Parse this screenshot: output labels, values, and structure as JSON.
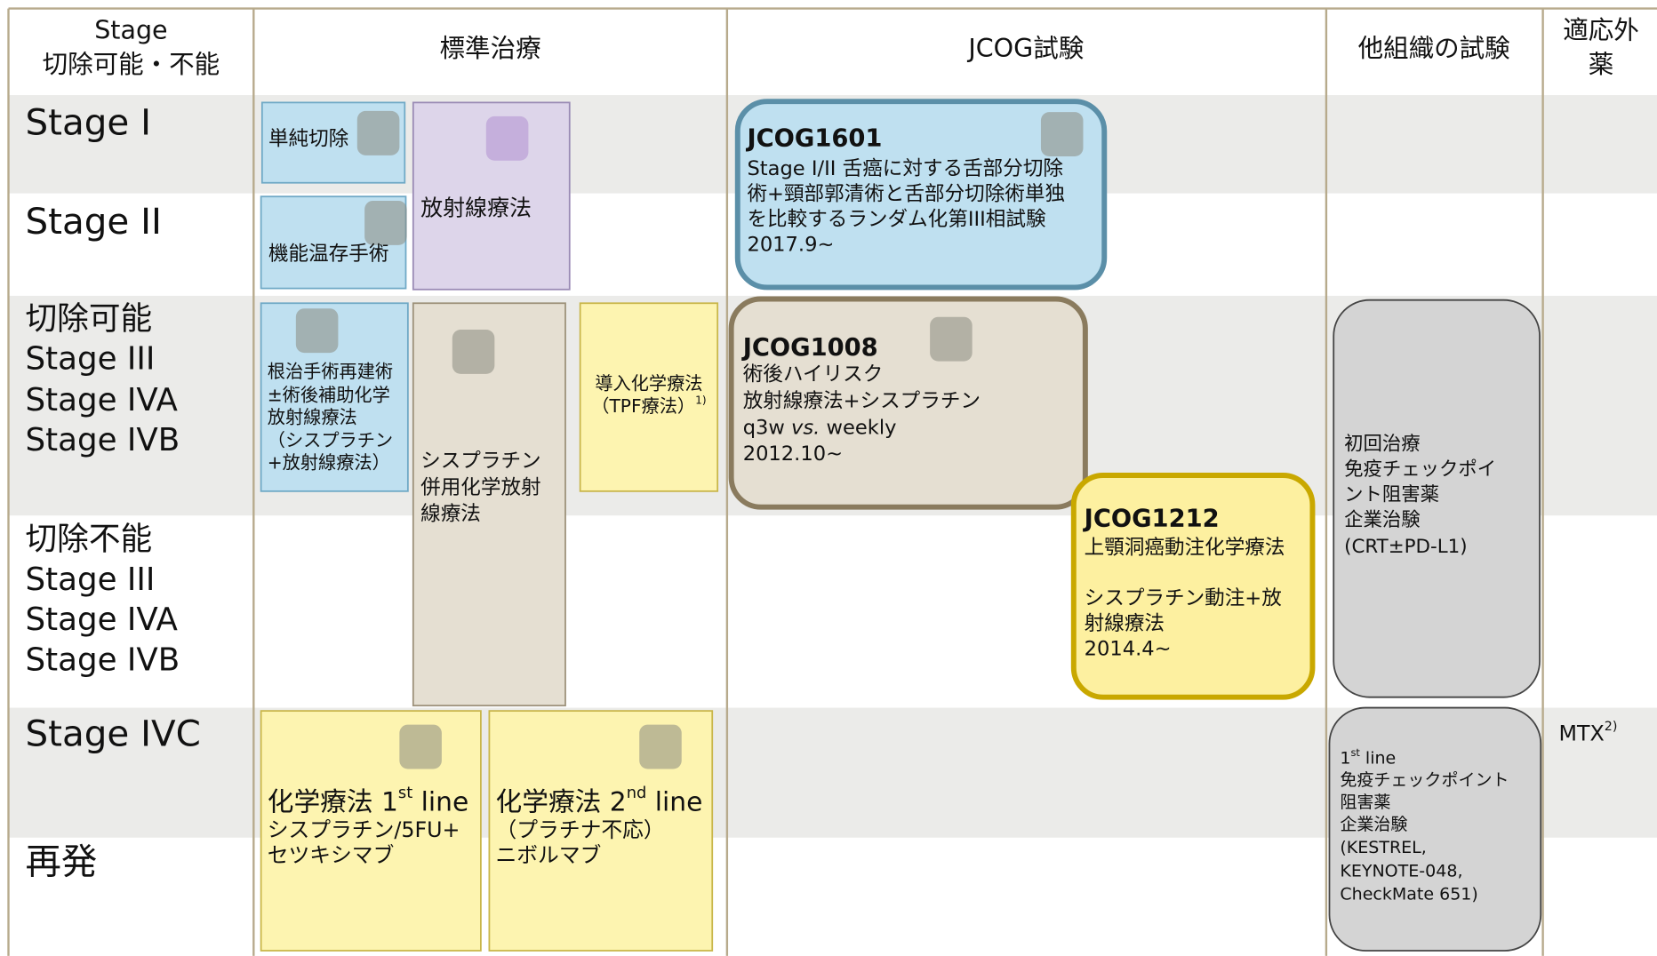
{
  "header": {
    "columns": [
      [
        "Stage",
        "切除可能・不能"
      ],
      [
        "標準治療"
      ],
      [
        "JCOG試験"
      ],
      [
        "他組織の試験"
      ],
      [
        "適応外",
        "薬"
      ]
    ]
  },
  "rows": [
    [
      "Stage I"
    ],
    [
      "Stage II"
    ],
    [
      "切除可能",
      "Stage III",
      "Stage IVA",
      "Stage IVB"
    ],
    [
      "切除不能",
      "Stage III",
      "Stage IVA",
      "Stage IVB"
    ],
    [
      "Stage IVC"
    ],
    [
      "再発"
    ]
  ],
  "boxes": [
    {
      "lines": [
        "単純切除"
      ]
    },
    {
      "lines": [
        "機能温存手術"
      ]
    },
    {
      "lines": [
        "放射線療法"
      ]
    },
    {
      "lines": [
        "根治手術再建術",
        "±術後補助化学",
        "放射線療法",
        "（シスプラチン",
        "+放射線療法）"
      ]
    },
    {
      "lines": [
        "シスプラチン",
        "併用化学放射",
        "線療法"
      ]
    },
    {
      "lines": [
        "導入化学療法",
        [
          {
            "text": "（TPF療法）"
          },
          {
            "sup": "1)"
          }
        ]
      ]
    },
    {
      "lines": [
        [
          {
            "text": "化学療法 1"
          },
          {
            "sup": "st"
          },
          {
            "text": " line"
          }
        ],
        "シスプラチン/5FU+",
        "セツキシマブ"
      ]
    },
    {
      "lines": [
        [
          {
            "text": "化学療法 2"
          },
          {
            "sup": "nd"
          },
          {
            "text": " line"
          }
        ],
        "（プラチナ不応）",
        "ニボルマブ"
      ]
    },
    {
      "title": "JCOG1601",
      "lines": [
        "Stage I/II 舌癌に対する舌部分切除",
        "術+頸部郭清術と舌部分切除術単独",
        "を比較するランダム化第III相試験",
        "2017.9~"
      ]
    },
    {
      "title": "JCOG1008",
      "lines": [
        "術後ハイリスク",
        "放射線療法+シスプラチン",
        [
          {
            "text": "q3w "
          },
          {
            "italic": "vs."
          },
          {
            "text": " weekly"
          }
        ],
        "2012.10~"
      ]
    },
    {
      "title": "JCOG1212",
      "lines": [
        "上顎洞癌動注化学療法",
        "シスプラチン動注+放",
        "射線療法",
        "2014.4~"
      ]
    },
    {
      "lines": [
        "初回治療",
        "免疫チェックポイ",
        "ント阻害薬",
        "企業治験",
        "(CRT±PD-L1)"
      ]
    },
    {
      "lines": [
        [
          {
            "text": "1"
          },
          {
            "sup": "st"
          },
          {
            "text": " line"
          }
        ],
        "免疫チェックポイント",
        "阻害薬",
        "企業治験",
        "(KESTREL,",
        "KEYNOTE-048,",
        "CheckMate 651)"
      ]
    },
    {
      "lines": [
        [
          {
            "text": "MTX"
          },
          {
            "sup": "2)"
          }
        ]
      ]
    }
  ]
}
